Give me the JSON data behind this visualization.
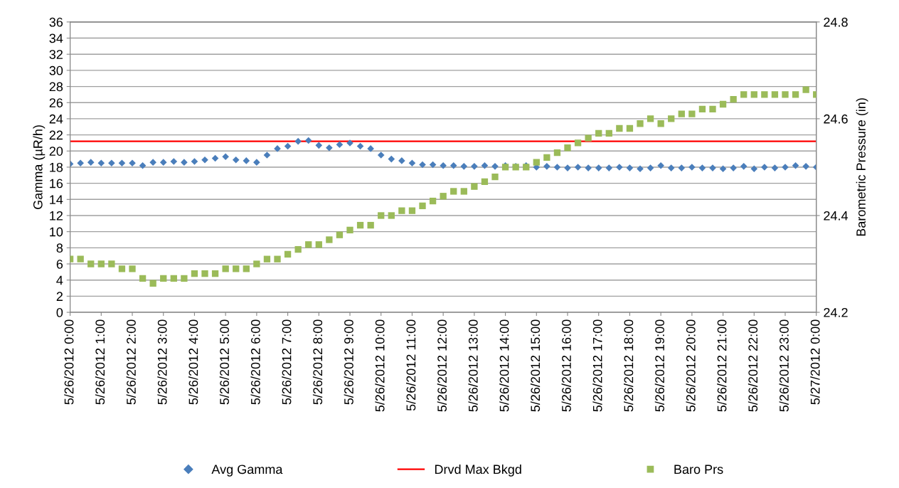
{
  "chart_data": {
    "type": "scatter",
    "ylabel": "Gamma (µR/h)",
    "y2label": "Barometric Pressure (in)",
    "x": [
      "2012-05-26T00:00",
      "2012-05-26T00:20",
      "2012-05-26T00:40",
      "2012-05-26T01:00",
      "2012-05-26T01:20",
      "2012-05-26T01:40",
      "2012-05-26T02:00",
      "2012-05-26T02:20",
      "2012-05-26T02:40",
      "2012-05-26T03:00",
      "2012-05-26T03:20",
      "2012-05-26T03:40",
      "2012-05-26T04:00",
      "2012-05-26T04:20",
      "2012-05-26T04:40",
      "2012-05-26T05:00",
      "2012-05-26T05:20",
      "2012-05-26T05:40",
      "2012-05-26T06:00",
      "2012-05-26T06:20",
      "2012-05-26T06:40",
      "2012-05-26T07:00",
      "2012-05-26T07:20",
      "2012-05-26T07:40",
      "2012-05-26T08:00",
      "2012-05-26T08:20",
      "2012-05-26T08:40",
      "2012-05-26T09:00",
      "2012-05-26T09:20",
      "2012-05-26T09:40",
      "2012-05-26T10:00",
      "2012-05-26T10:20",
      "2012-05-26T10:40",
      "2012-05-26T11:00",
      "2012-05-26T11:20",
      "2012-05-26T11:40",
      "2012-05-26T12:00",
      "2012-05-26T12:20",
      "2012-05-26T12:40",
      "2012-05-26T13:00",
      "2012-05-26T13:20",
      "2012-05-26T13:40",
      "2012-05-26T14:00",
      "2012-05-26T14:20",
      "2012-05-26T14:40",
      "2012-05-26T15:00",
      "2012-05-26T15:20",
      "2012-05-26T15:40",
      "2012-05-26T16:00",
      "2012-05-26T16:20",
      "2012-05-26T16:40",
      "2012-05-26T17:00",
      "2012-05-26T17:20",
      "2012-05-26T17:40",
      "2012-05-26T18:00",
      "2012-05-26T18:20",
      "2012-05-26T18:40",
      "2012-05-26T19:00",
      "2012-05-26T19:20",
      "2012-05-26T19:40",
      "2012-05-26T20:00",
      "2012-05-26T20:20",
      "2012-05-26T20:40",
      "2012-05-26T21:00",
      "2012-05-26T21:20",
      "2012-05-26T21:40",
      "2012-05-26T22:00",
      "2012-05-26T22:20",
      "2012-05-26T22:40",
      "2012-05-26T23:00",
      "2012-05-26T23:20",
      "2012-05-26T23:40",
      "2012-05-27T00:00"
    ],
    "series": [
      {
        "name": "Avg Gamma",
        "marker": "diamond",
        "color": "#4a7ebb",
        "values": [
          18.4,
          18.5,
          18.6,
          18.5,
          18.5,
          18.5,
          18.5,
          18.2,
          18.6,
          18.6,
          18.7,
          18.6,
          18.7,
          18.9,
          19.1,
          19.3,
          18.9,
          18.8,
          18.6,
          19.5,
          20.3,
          20.6,
          21.2,
          21.3,
          20.7,
          20.4,
          20.8,
          21.0,
          20.6,
          20.3,
          19.5,
          19.0,
          18.8,
          18.5,
          18.3,
          18.3,
          18.2,
          18.2,
          18.1,
          18.1,
          18.2,
          18.1,
          18.2,
          18.1,
          18.2,
          18.0,
          18.1,
          18.0,
          17.9,
          18.0,
          17.9,
          17.9,
          17.9,
          18.0,
          17.9,
          17.8,
          17.9,
          18.2,
          17.9,
          17.9,
          18.0,
          17.9,
          17.9,
          17.8,
          17.9,
          18.1,
          17.8,
          18.0,
          17.9,
          18.0,
          18.2,
          18.1,
          18.0
        ]
      },
      {
        "name": "Baro Prs",
        "marker": "square",
        "axis": "y2",
        "color": "#9bbb59",
        "values": [
          24.31,
          24.31,
          24.3,
          24.3,
          24.3,
          24.29,
          24.29,
          24.27,
          24.26,
          24.27,
          24.27,
          24.27,
          24.28,
          24.28,
          24.28,
          24.29,
          24.29,
          24.29,
          24.3,
          24.31,
          24.31,
          24.32,
          24.33,
          24.34,
          24.34,
          24.35,
          24.36,
          24.37,
          24.38,
          24.38,
          24.4,
          24.4,
          24.41,
          24.41,
          24.42,
          24.43,
          24.44,
          24.45,
          24.45,
          24.46,
          24.47,
          24.48,
          24.5,
          24.5,
          24.5,
          24.51,
          24.52,
          24.53,
          24.54,
          24.55,
          24.56,
          24.57,
          24.57,
          24.58,
          24.58,
          24.59,
          24.6,
          24.59,
          24.6,
          24.61,
          24.61,
          24.62,
          24.62,
          24.63,
          24.64,
          24.65,
          24.65,
          24.65,
          24.65,
          24.65,
          24.65,
          24.66,
          24.65
        ]
      }
    ],
    "ref_lines": [
      {
        "axis": "y",
        "value": 21.2,
        "label": "Drvd Max Bkgd",
        "color": "#ff0000",
        "line_style": "solid"
      }
    ],
    "xlim": [
      "2012-05-26T00:00",
      "2012-05-27T00:00"
    ],
    "xticks": [
      {
        "value": "2012-05-26T00:00",
        "label": "5/26/2012 0:00"
      },
      {
        "value": "2012-05-26T01:00",
        "label": "5/26/2012 1:00"
      },
      {
        "value": "2012-05-26T02:00",
        "label": "5/26/2012 2:00"
      },
      {
        "value": "2012-05-26T03:00",
        "label": "5/26/2012 3:00"
      },
      {
        "value": "2012-05-26T04:00",
        "label": "5/26/2012 4:00"
      },
      {
        "value": "2012-05-26T05:00",
        "label": "5/26/2012 5:00"
      },
      {
        "value": "2012-05-26T06:00",
        "label": "5/26/2012 6:00"
      },
      {
        "value": "2012-05-26T07:00",
        "label": "5/26/2012 7:00"
      },
      {
        "value": "2012-05-26T08:00",
        "label": "5/26/2012 8:00"
      },
      {
        "value": "2012-05-26T09:00",
        "label": "5/26/2012 9:00"
      },
      {
        "value": "2012-05-26T10:00",
        "label": "5/26/2012 10:00"
      },
      {
        "value": "2012-05-26T11:00",
        "label": "5/26/2012 11:00"
      },
      {
        "value": "2012-05-26T12:00",
        "label": "5/26/2012 12:00"
      },
      {
        "value": "2012-05-26T13:00",
        "label": "5/26/2012 13:00"
      },
      {
        "value": "2012-05-26T14:00",
        "label": "5/26/2012 14:00"
      },
      {
        "value": "2012-05-26T15:00",
        "label": "5/26/2012 15:00"
      },
      {
        "value": "2012-05-26T16:00",
        "label": "5/26/2012 16:00"
      },
      {
        "value": "2012-05-26T17:00",
        "label": "5/26/2012 17:00"
      },
      {
        "value": "2012-05-26T18:00",
        "label": "5/26/2012 18:00"
      },
      {
        "value": "2012-05-26T19:00",
        "label": "5/26/2012 19:00"
      },
      {
        "value": "2012-05-26T20:00",
        "label": "5/26/2012 20:00"
      },
      {
        "value": "2012-05-26T21:00",
        "label": "5/26/2012 21:00"
      },
      {
        "value": "2012-05-26T22:00",
        "label": "5/26/2012 22:00"
      },
      {
        "value": "2012-05-26T23:00",
        "label": "5/26/2012 23:00"
      },
      {
        "value": "2012-05-27T00:00",
        "label": "5/27/2012 0:00"
      }
    ],
    "ylim": [
      0,
      36
    ],
    "yticks": [
      0,
      2,
      4,
      6,
      8,
      10,
      12,
      14,
      16,
      18,
      20,
      22,
      24,
      26,
      28,
      30,
      32,
      34,
      36
    ],
    "y2lim": [
      24.2,
      24.8
    ],
    "y2ticks": [
      24.2,
      24.4,
      24.6,
      24.8
    ],
    "grid": "y",
    "legend": "bottom"
  }
}
